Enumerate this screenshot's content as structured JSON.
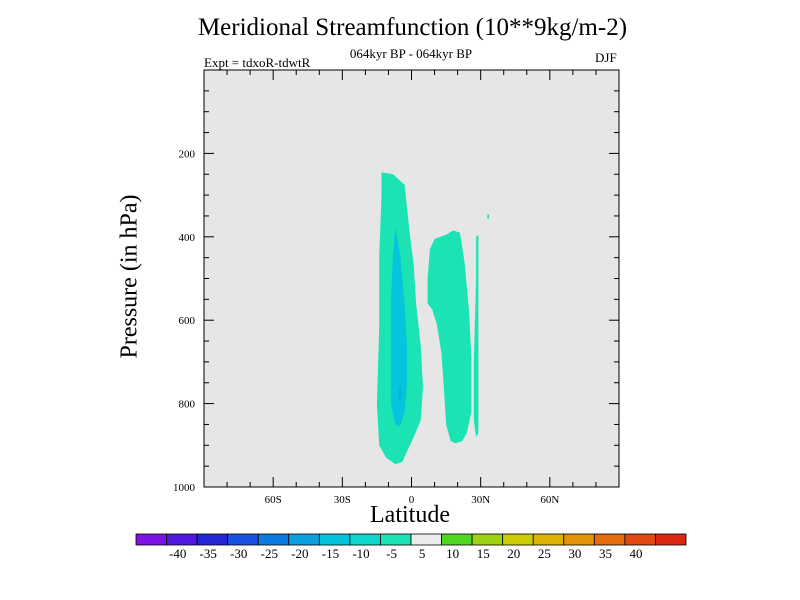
{
  "chart_data": {
    "type": "contour",
    "title": "Meridional Streamfunction (10**9kg/m-2)",
    "subtitle": "064kyr BP - 064kyr BP",
    "left_annotation": "Expt = tdxoR-tdwtR",
    "right_annotation": "DJF",
    "xlabel": "Latitude",
    "ylabel": "Pressure (in hPa)",
    "x_axis": {
      "range": [
        -90,
        90
      ],
      "tick_values": [
        -60,
        -30,
        0,
        30,
        60
      ],
      "tick_labels": [
        "60S",
        "30S",
        "0",
        "30N",
        "60N"
      ]
    },
    "y_axis": {
      "range": [
        0,
        1000
      ],
      "inverted": true,
      "tick_values": [
        200,
        400,
        600,
        800,
        1000
      ],
      "tick_labels": [
        "200",
        "400",
        "600",
        "800",
        "1000"
      ]
    },
    "background_color": "#e6e6e6",
    "regions": [
      {
        "level": "-10 to -5",
        "color": "#1ce3b4",
        "outline": [
          [
            -13,
            245
          ],
          [
            -8,
            250
          ],
          [
            -3,
            275
          ],
          [
            -1,
            380
          ],
          [
            1,
            470
          ],
          [
            2,
            560
          ],
          [
            4,
            660
          ],
          [
            5,
            760
          ],
          [
            4,
            840
          ],
          [
            1,
            880
          ],
          [
            -2,
            915
          ],
          [
            -4,
            940
          ],
          [
            -7,
            945
          ],
          [
            -11,
            930
          ],
          [
            -14,
            900
          ],
          [
            -15,
            800
          ],
          [
            -14,
            620
          ],
          [
            -14,
            450
          ],
          [
            -13,
            300
          ]
        ]
      },
      {
        "level": "-15 to -10",
        "color": "#04c5dc",
        "outline": [
          [
            -7,
            378
          ],
          [
            -5,
            440
          ],
          [
            -3,
            560
          ],
          [
            -2,
            660
          ],
          [
            -2,
            760
          ],
          [
            -3,
            820
          ],
          [
            -5,
            855
          ],
          [
            -7,
            850
          ],
          [
            -9,
            800
          ],
          [
            -9,
            700
          ],
          [
            -9,
            560
          ],
          [
            -8,
            440
          ]
        ]
      },
      {
        "level": "-20 to -15",
        "color": "#0bb0e0",
        "outline": [
          [
            -5,
            760
          ],
          [
            -4,
            775
          ],
          [
            -5,
            795
          ],
          [
            -6,
            780
          ]
        ]
      },
      {
        "level": "-10 to -5",
        "color": "#1ce3b4",
        "outline": [
          [
            7,
            500
          ],
          [
            8,
            430
          ],
          [
            10,
            405
          ],
          [
            15,
            395
          ],
          [
            18,
            385
          ],
          [
            21,
            390
          ],
          [
            23,
            460
          ],
          [
            25,
            580
          ],
          [
            26,
            690
          ],
          [
            26,
            820
          ],
          [
            24,
            870
          ],
          [
            22,
            890
          ],
          [
            19,
            895
          ],
          [
            17,
            890
          ],
          [
            15,
            850
          ],
          [
            14,
            760
          ],
          [
            13,
            680
          ],
          [
            11,
            610
          ],
          [
            9,
            575
          ],
          [
            7,
            560
          ]
        ]
      },
      {
        "level": "-10 to -5",
        "color": "#1ce3b4",
        "outline": [
          [
            28,
            400
          ],
          [
            29,
            395
          ],
          [
            29,
            680
          ],
          [
            29,
            870
          ],
          [
            28,
            880
          ],
          [
            27,
            840
          ],
          [
            27,
            700
          ],
          [
            28,
            500
          ]
        ]
      },
      {
        "level": "-10 to -5",
        "color": "#1ce3b4",
        "outline": [
          [
            33,
            345
          ],
          [
            33.7,
            348
          ],
          [
            33.5,
            358
          ],
          [
            32.8,
            353
          ]
        ]
      }
    ],
    "colorbar": {
      "levels": [
        -40,
        -35,
        -30,
        -25,
        -20,
        -15,
        -10,
        -5,
        5,
        10,
        15,
        20,
        25,
        30,
        35,
        40
      ],
      "labels": [
        "-40",
        "-35",
        "-30",
        "-25",
        "-20",
        "-15",
        "-10",
        "-5",
        "5",
        "10",
        "15",
        "20",
        "25",
        "30",
        "35",
        "40"
      ],
      "colors": [
        "#7e13e6",
        "#5018e0",
        "#2526d6",
        "#1852e0",
        "#0b7ae2",
        "#0aa0e0",
        "#03c3dc",
        "#0ed6cc",
        "#1de3b4",
        "#ececec",
        "#4fd61f",
        "#9ed10f",
        "#cbcb06",
        "#dfb104",
        "#e3920a",
        "#e36c0c",
        "#e04a10",
        "#dc2812"
      ]
    }
  }
}
